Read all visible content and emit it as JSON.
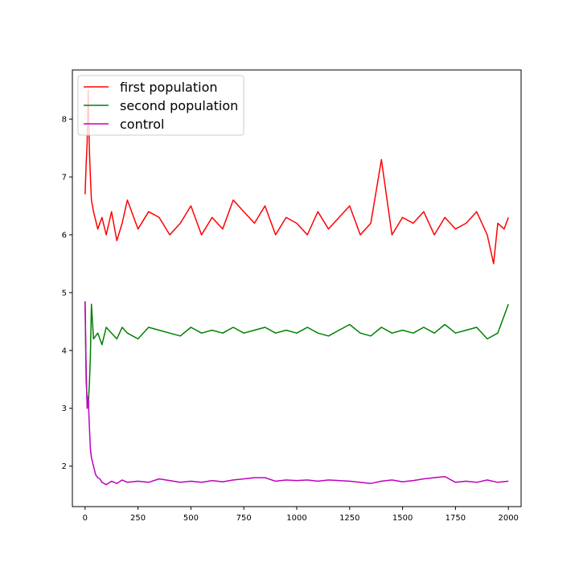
{
  "chart_data": {
    "type": "line",
    "title": "",
    "xlabel": "",
    "ylabel": "",
    "xlim": [
      -60,
      2060
    ],
    "ylim": [
      1.3,
      8.85
    ],
    "xticks": [
      0,
      250,
      500,
      750,
      1000,
      1250,
      1500,
      1750,
      2000
    ],
    "yticks": [
      2,
      3,
      4,
      5,
      6,
      7,
      8
    ],
    "grid": false,
    "legend_position": "top-left",
    "series": [
      {
        "name": "first population",
        "color": "#ff0000",
        "x": [
          0,
          5,
          10,
          15,
          20,
          25,
          30,
          40,
          60,
          80,
          100,
          125,
          150,
          175,
          200,
          250,
          300,
          350,
          400,
          450,
          500,
          550,
          600,
          650,
          700,
          750,
          800,
          850,
          900,
          950,
          1000,
          1050,
          1100,
          1150,
          1200,
          1250,
          1300,
          1350,
          1400,
          1450,
          1500,
          1550,
          1600,
          1650,
          1700,
          1750,
          1800,
          1850,
          1900,
          1930,
          1950,
          1980,
          2000
        ],
        "y": [
          6.7,
          7.2,
          7.6,
          8.5,
          7.5,
          7.0,
          6.6,
          6.4,
          6.1,
          6.3,
          6.0,
          6.4,
          5.9,
          6.2,
          6.6,
          6.1,
          6.4,
          6.3,
          6.0,
          6.2,
          6.5,
          6.0,
          6.3,
          6.1,
          6.6,
          6.4,
          6.2,
          6.5,
          6.0,
          6.3,
          6.2,
          6.0,
          6.4,
          6.1,
          6.3,
          6.5,
          6.0,
          6.2,
          7.3,
          6.0,
          6.3,
          6.2,
          6.4,
          6.0,
          6.3,
          6.1,
          6.2,
          6.4,
          6.0,
          5.5,
          6.2,
          6.1,
          6.3
        ]
      },
      {
        "name": "second population",
        "color": "#008000",
        "x": [
          0,
          5,
          10,
          15,
          20,
          25,
          30,
          40,
          60,
          80,
          100,
          125,
          150,
          175,
          200,
          250,
          300,
          350,
          400,
          450,
          500,
          550,
          600,
          650,
          700,
          750,
          800,
          850,
          900,
          950,
          1000,
          1050,
          1100,
          1150,
          1200,
          1250,
          1300,
          1350,
          1400,
          1450,
          1500,
          1550,
          1600,
          1650,
          1700,
          1750,
          1800,
          1850,
          1900,
          1950,
          2000
        ],
        "y": [
          4.85,
          3.5,
          3.1,
          3.05,
          3.4,
          3.9,
          4.8,
          4.2,
          4.3,
          4.1,
          4.4,
          4.3,
          4.2,
          4.4,
          4.3,
          4.2,
          4.4,
          4.35,
          4.3,
          4.25,
          4.4,
          4.3,
          4.35,
          4.3,
          4.4,
          4.3,
          4.35,
          4.4,
          4.3,
          4.35,
          4.3,
          4.4,
          4.3,
          4.25,
          4.35,
          4.45,
          4.3,
          4.25,
          4.4,
          4.3,
          4.35,
          4.3,
          4.4,
          4.3,
          4.45,
          4.3,
          4.35,
          4.4,
          4.2,
          4.3,
          4.8
        ]
      },
      {
        "name": "control",
        "color": "#bf00bf",
        "x": [
          0,
          5,
          10,
          15,
          20,
          25,
          30,
          40,
          50,
          60,
          70,
          80,
          100,
          125,
          150,
          175,
          200,
          250,
          300,
          350,
          400,
          450,
          500,
          550,
          600,
          650,
          700,
          750,
          800,
          850,
          900,
          950,
          1000,
          1050,
          1100,
          1150,
          1200,
          1250,
          1300,
          1350,
          1400,
          1450,
          1500,
          1550,
          1600,
          1650,
          1700,
          1750,
          1800,
          1850,
          1900,
          1950,
          2000
        ],
        "y": [
          4.85,
          3.7,
          3.0,
          3.2,
          2.7,
          2.3,
          2.15,
          2.0,
          1.85,
          1.8,
          1.78,
          1.72,
          1.68,
          1.74,
          1.7,
          1.76,
          1.72,
          1.74,
          1.72,
          1.78,
          1.75,
          1.72,
          1.74,
          1.72,
          1.75,
          1.73,
          1.76,
          1.78,
          1.8,
          1.8,
          1.74,
          1.76,
          1.75,
          1.76,
          1.74,
          1.76,
          1.75,
          1.74,
          1.72,
          1.7,
          1.74,
          1.76,
          1.73,
          1.75,
          1.78,
          1.8,
          1.82,
          1.72,
          1.74,
          1.72,
          1.76,
          1.72,
          1.74
        ]
      }
    ]
  }
}
